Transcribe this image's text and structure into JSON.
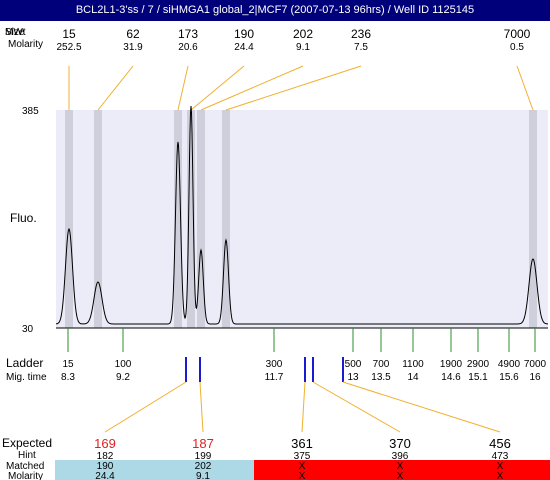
{
  "title": "BCL2L1-3'ss / 7 / siHMGA1 global_2|MCF7 (2007-07-13 96hrs) / Well ID 1125145",
  "header_labels": {
    "size": "Size",
    "mwt": "MWt",
    "molarity": "Molarity"
  },
  "chart_data": {
    "type": "line",
    "ylabel": "Fluo.",
    "ylim": [
      30,
      385
    ],
    "ytick_labels": [
      "385",
      "30"
    ],
    "peaks": [
      {
        "size": "15",
        "molarity": "252.5"
      },
      {
        "size": "62",
        "molarity": "31.9"
      },
      {
        "size": "173",
        "molarity": "20.6"
      },
      {
        "size": "190",
        "molarity": "24.4"
      },
      {
        "size": "202",
        "molarity": "9.1"
      },
      {
        "size": "236",
        "molarity": "7.5"
      },
      {
        "size": "7000",
        "molarity": "0.5"
      }
    ],
    "ladder": {
      "label": "Ladder",
      "mig_label": "Mig. time",
      "sizes": [
        "15",
        "100",
        "300",
        "500",
        "700",
        "1100",
        "1900",
        "2900",
        "4900",
        "7000"
      ],
      "mig_times": [
        "8.3",
        "9.2",
        "11.7",
        "13",
        "13.5",
        "14",
        "14.6",
        "15.1",
        "15.6",
        "16"
      ]
    },
    "bands": {
      "row_labels": {
        "expected": "Expected",
        "hint": "Hint",
        "matched": "Matched",
        "molarity": "Molarity"
      },
      "expected": [
        "169",
        "187",
        "361",
        "370",
        "456"
      ],
      "hint": [
        "182",
        "199",
        "375",
        "396",
        "473"
      ],
      "matched": [
        "190",
        "202",
        "X",
        "X",
        "X"
      ],
      "molarity": [
        "24.4",
        "9.1",
        "X",
        "X",
        "X"
      ],
      "status": [
        "found",
        "found",
        "missing",
        "missing",
        "missing"
      ]
    }
  },
  "colors": {
    "title_bg": "#00007a",
    "plot_bg": "#ececf8",
    "peak_band": "#cfcfdc",
    "callout": "#f0b030",
    "ladder_tick": "#2e8b2e",
    "marker": "#1a1ad0",
    "expected_found": "#e02020",
    "found_bg": "#add8e6",
    "missing_bg": "#ff0000"
  }
}
